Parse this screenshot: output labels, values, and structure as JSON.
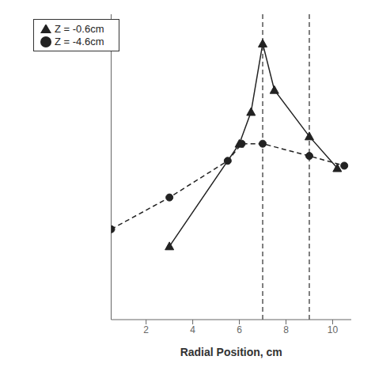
{
  "chart_data": {
    "type": "line",
    "title": "",
    "xlabel": "Radial Position, cm",
    "ylabel": "",
    "xlim": [
      0.5,
      10.8
    ],
    "ylim": [
      -0.25,
      1.0
    ],
    "xticks": [
      2,
      4,
      6,
      8,
      10
    ],
    "tick_labels": "x",
    "grid": false,
    "legend": "upper left",
    "vlines": [
      7.0,
      9.0
    ],
    "series": [
      {
        "name": "Z = -0.6cm",
        "color": "#222222",
        "marker": "triangle",
        "line_style": "solid",
        "x": [
          3.0,
          6.0,
          6.5,
          7.0,
          7.5,
          9.0,
          10.2
        ],
        "values": [
          0.05,
          0.47,
          0.6,
          0.88,
          0.69,
          0.5,
          0.37
        ]
      },
      {
        "name": "Z = -4.6cm",
        "color": "#222222",
        "marker": "circle",
        "line_style": "dashed",
        "x": [
          0.5,
          3.0,
          5.5,
          6.1,
          7.0,
          9.0,
          10.5
        ],
        "values": [
          0.12,
          0.25,
          0.4,
          0.47,
          0.47,
          0.42,
          0.38
        ]
      }
    ]
  }
}
